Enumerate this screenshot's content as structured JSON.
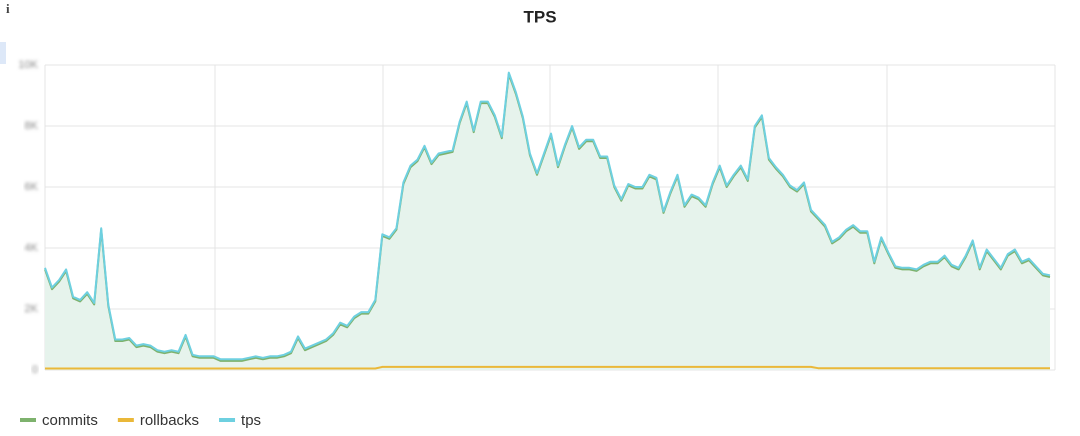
{
  "chart_data": {
    "type": "line",
    "title": "TPS",
    "ylim": [
      0,
      10000
    ],
    "yticks": [
      0,
      {
        "value": 2000,
        "label": "2K"
      },
      {
        "value": 4000,
        "label": "4K"
      },
      {
        "value": 6000,
        "label": "6K"
      },
      {
        "value": 8000,
        "label": "8K"
      },
      {
        "value": 10000,
        "label": "10K"
      }
    ],
    "grid": true,
    "legend": "bottom-left",
    "fill_color": "#e6f3ec",
    "series": [
      {
        "name": "commits",
        "color": "#7eb26d",
        "values": [
          3300,
          2650,
          2900,
          3250,
          2350,
          2250,
          2500,
          2150,
          4600,
          2100,
          950,
          950,
          1000,
          750,
          800,
          750,
          600,
          550,
          600,
          550,
          1100,
          450,
          400,
          400,
          400,
          300,
          300,
          300,
          300,
          350,
          400,
          350,
          400,
          400,
          450,
          550,
          1050,
          650,
          750,
          850,
          950,
          1150,
          1500,
          1400,
          1700,
          1850,
          1850,
          2250,
          4400,
          4300,
          4600,
          6100,
          6650,
          6850,
          7300,
          6750,
          7050,
          7100,
          7150,
          8100,
          8750,
          7800,
          8750,
          8750,
          8300,
          7600,
          9700,
          9050,
          8250,
          7050,
          6400,
          7050,
          7700,
          6650,
          7350,
          7950,
          7250,
          7500,
          7500,
          6950,
          6950,
          6000,
          5550,
          6050,
          5950,
          5950,
          6350,
          6250,
          5150,
          5800,
          6350,
          5350,
          5700,
          5600,
          5350,
          6100,
          6650,
          6000,
          6350,
          6650,
          6200,
          7950,
          8300,
          6900,
          6600,
          6350,
          6000,
          5850,
          6100,
          5200,
          4950,
          4700,
          4150,
          4300,
          4550,
          4700,
          4500,
          4500,
          3500,
          4300,
          3800,
          3350,
          3300,
          3300,
          3250,
          3400,
          3500,
          3500,
          3700,
          3400,
          3300,
          3700,
          4200,
          3300,
          3900,
          3600,
          3300,
          3750,
          3900,
          3500,
          3600,
          3350,
          3100,
          3050
        ]
      },
      {
        "name": "rollbacks",
        "color": "#eab839",
        "values": [
          50,
          50,
          50,
          50,
          50,
          50,
          50,
          50,
          50,
          50,
          50,
          50,
          50,
          50,
          50,
          50,
          50,
          50,
          50,
          50,
          50,
          50,
          50,
          50,
          50,
          50,
          50,
          50,
          50,
          50,
          50,
          50,
          50,
          50,
          50,
          50,
          50,
          50,
          50,
          50,
          50,
          50,
          50,
          50,
          50,
          50,
          50,
          50,
          100,
          100,
          100,
          100,
          100,
          100,
          100,
          100,
          100,
          100,
          100,
          100,
          100,
          100,
          100,
          100,
          100,
          100,
          100,
          100,
          100,
          100,
          100,
          100,
          100,
          100,
          100,
          100,
          100,
          100,
          100,
          100,
          100,
          100,
          100,
          100,
          100,
          100,
          100,
          100,
          100,
          100,
          100,
          100,
          100,
          100,
          100,
          100,
          100,
          100,
          100,
          100,
          100,
          100,
          100,
          100,
          100,
          100,
          100,
          100,
          100,
          100,
          60,
          60,
          60,
          60,
          60,
          60,
          60,
          60,
          60,
          60,
          60,
          60,
          60,
          60,
          60,
          60,
          60,
          60,
          60,
          60,
          60,
          60,
          60,
          60,
          60,
          60,
          60,
          60,
          60,
          60,
          60,
          60,
          60,
          60
        ]
      },
      {
        "name": "tps",
        "color": "#6ed0e0",
        "values": [
          3350,
          2700,
          2950,
          3300,
          2400,
          2300,
          2550,
          2200,
          4650,
          2150,
          1000,
          1000,
          1050,
          800,
          850,
          800,
          650,
          600,
          650,
          600,
          1150,
          500,
          450,
          450,
          450,
          350,
          350,
          350,
          350,
          400,
          450,
          400,
          450,
          450,
          500,
          600,
          1100,
          700,
          800,
          900,
          1000,
          1200,
          1550,
          1450,
          1750,
          1900,
          1900,
          2300,
          4450,
          4350,
          4650,
          6150,
          6700,
          6900,
          7350,
          6800,
          7100,
          7150,
          7200,
          8150,
          8800,
          7850,
          8800,
          8800,
          8350,
          7650,
          9750,
          9100,
          8300,
          7100,
          6450,
          7100,
          7750,
          6700,
          7400,
          8000,
          7300,
          7550,
          7550,
          7000,
          7000,
          6050,
          5600,
          6100,
          6000,
          6000,
          6400,
          6300,
          5200,
          5850,
          6400,
          5400,
          5750,
          5650,
          5400,
          6150,
          6700,
          6050,
          6400,
          6700,
          6250,
          8000,
          8350,
          6950,
          6650,
          6400,
          6050,
          5900,
          6150,
          5250,
          5000,
          4750,
          4200,
          4350,
          4600,
          4750,
          4550,
          4550,
          3550,
          4350,
          3850,
          3400,
          3350,
          3350,
          3300,
          3450,
          3550,
          3550,
          3750,
          3450,
          3350,
          3750,
          4250,
          3350,
          3950,
          3650,
          3350,
          3800,
          3950,
          3550,
          3650,
          3400,
          3150,
          3100
        ]
      }
    ]
  }
}
